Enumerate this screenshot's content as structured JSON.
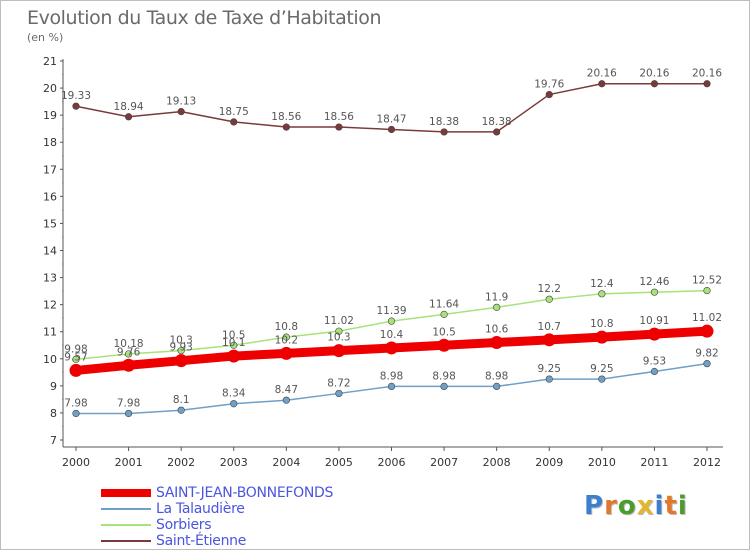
{
  "title": "Evolution du Taux de Taxe d’Habitation",
  "subtitle": "(en %)",
  "logo": {
    "text": "Proxiti",
    "letter_colors": [
      "#3d7fcf",
      "#e2782d",
      "#4a9c2c",
      "#e2b62d",
      "#3d7fcf",
      "#e2782d",
      "#4a9c2c"
    ]
  },
  "chart_data": {
    "type": "line",
    "title": "Evolution du Taux de Taxe d’Habitation",
    "ylabel": "(en %)",
    "xlabel": "",
    "ylim": [
      7,
      21
    ],
    "yticks": [
      7,
      8,
      9,
      10,
      11,
      12,
      13,
      14,
      15,
      16,
      17,
      18,
      19,
      20,
      21
    ],
    "grid": false,
    "legend_position": "bottom-left",
    "categories": [
      "2000",
      "2001",
      "2002",
      "2003",
      "2004",
      "2005",
      "2006",
      "2007",
      "2008",
      "2009",
      "2010",
      "2011",
      "2012"
    ],
    "series": [
      {
        "name": "SAINT-JEAN-BONNEFONDS",
        "color": "#ee0000",
        "bold": true,
        "values": [
          9.57,
          9.76,
          9.93,
          10.1,
          10.2,
          10.3,
          10.4,
          10.5,
          10.6,
          10.7,
          10.8,
          10.91,
          11.02
        ],
        "labels": [
          "9.57",
          "9.76",
          "9.93",
          "10.1",
          "10.2",
          "10.3",
          "10.4",
          "10.5",
          "10.6",
          "10.7",
          "10.8",
          "10.91",
          "11.02"
        ]
      },
      {
        "name": "La Talaudière",
        "color": "#6fa0c8",
        "bold": false,
        "values": [
          7.98,
          7.98,
          8.1,
          8.34,
          8.47,
          8.72,
          8.98,
          8.98,
          8.98,
          9.25,
          9.25,
          9.53,
          9.82
        ],
        "labels": [
          "7.98",
          "7.98",
          "8.1",
          "8.34",
          "8.47",
          "8.72",
          "8.98",
          "8.98",
          "8.98",
          "9.25",
          "9.25",
          "9.53",
          "9.82"
        ]
      },
      {
        "name": "Sorbiers",
        "color": "#a8e27a",
        "bold": false,
        "values": [
          9.98,
          10.18,
          10.3,
          10.5,
          10.8,
          11.02,
          11.39,
          11.64,
          11.9,
          12.2,
          12.4,
          12.46,
          12.52
        ],
        "labels": [
          "9.98",
          "10.18",
          "10.3",
          "10.5",
          "10.8",
          "11.02",
          "11.39",
          "11.64",
          "11.9",
          "12.2",
          "12.4",
          "12.46",
          "12.52"
        ]
      },
      {
        "name": "Saint-Étienne",
        "color": "#7a3a3a",
        "bold": false,
        "values": [
          19.33,
          18.94,
          19.13,
          18.75,
          18.56,
          18.56,
          18.47,
          18.38,
          18.38,
          19.76,
          20.16,
          20.16,
          20.16
        ],
        "labels": [
          "19.33",
          "18.94",
          "19.13",
          "18.75",
          "18.56",
          "18.56",
          "18.47",
          "18.38",
          "18.38",
          "19.76",
          "20.16",
          "20.16",
          "20.16"
        ]
      }
    ]
  }
}
